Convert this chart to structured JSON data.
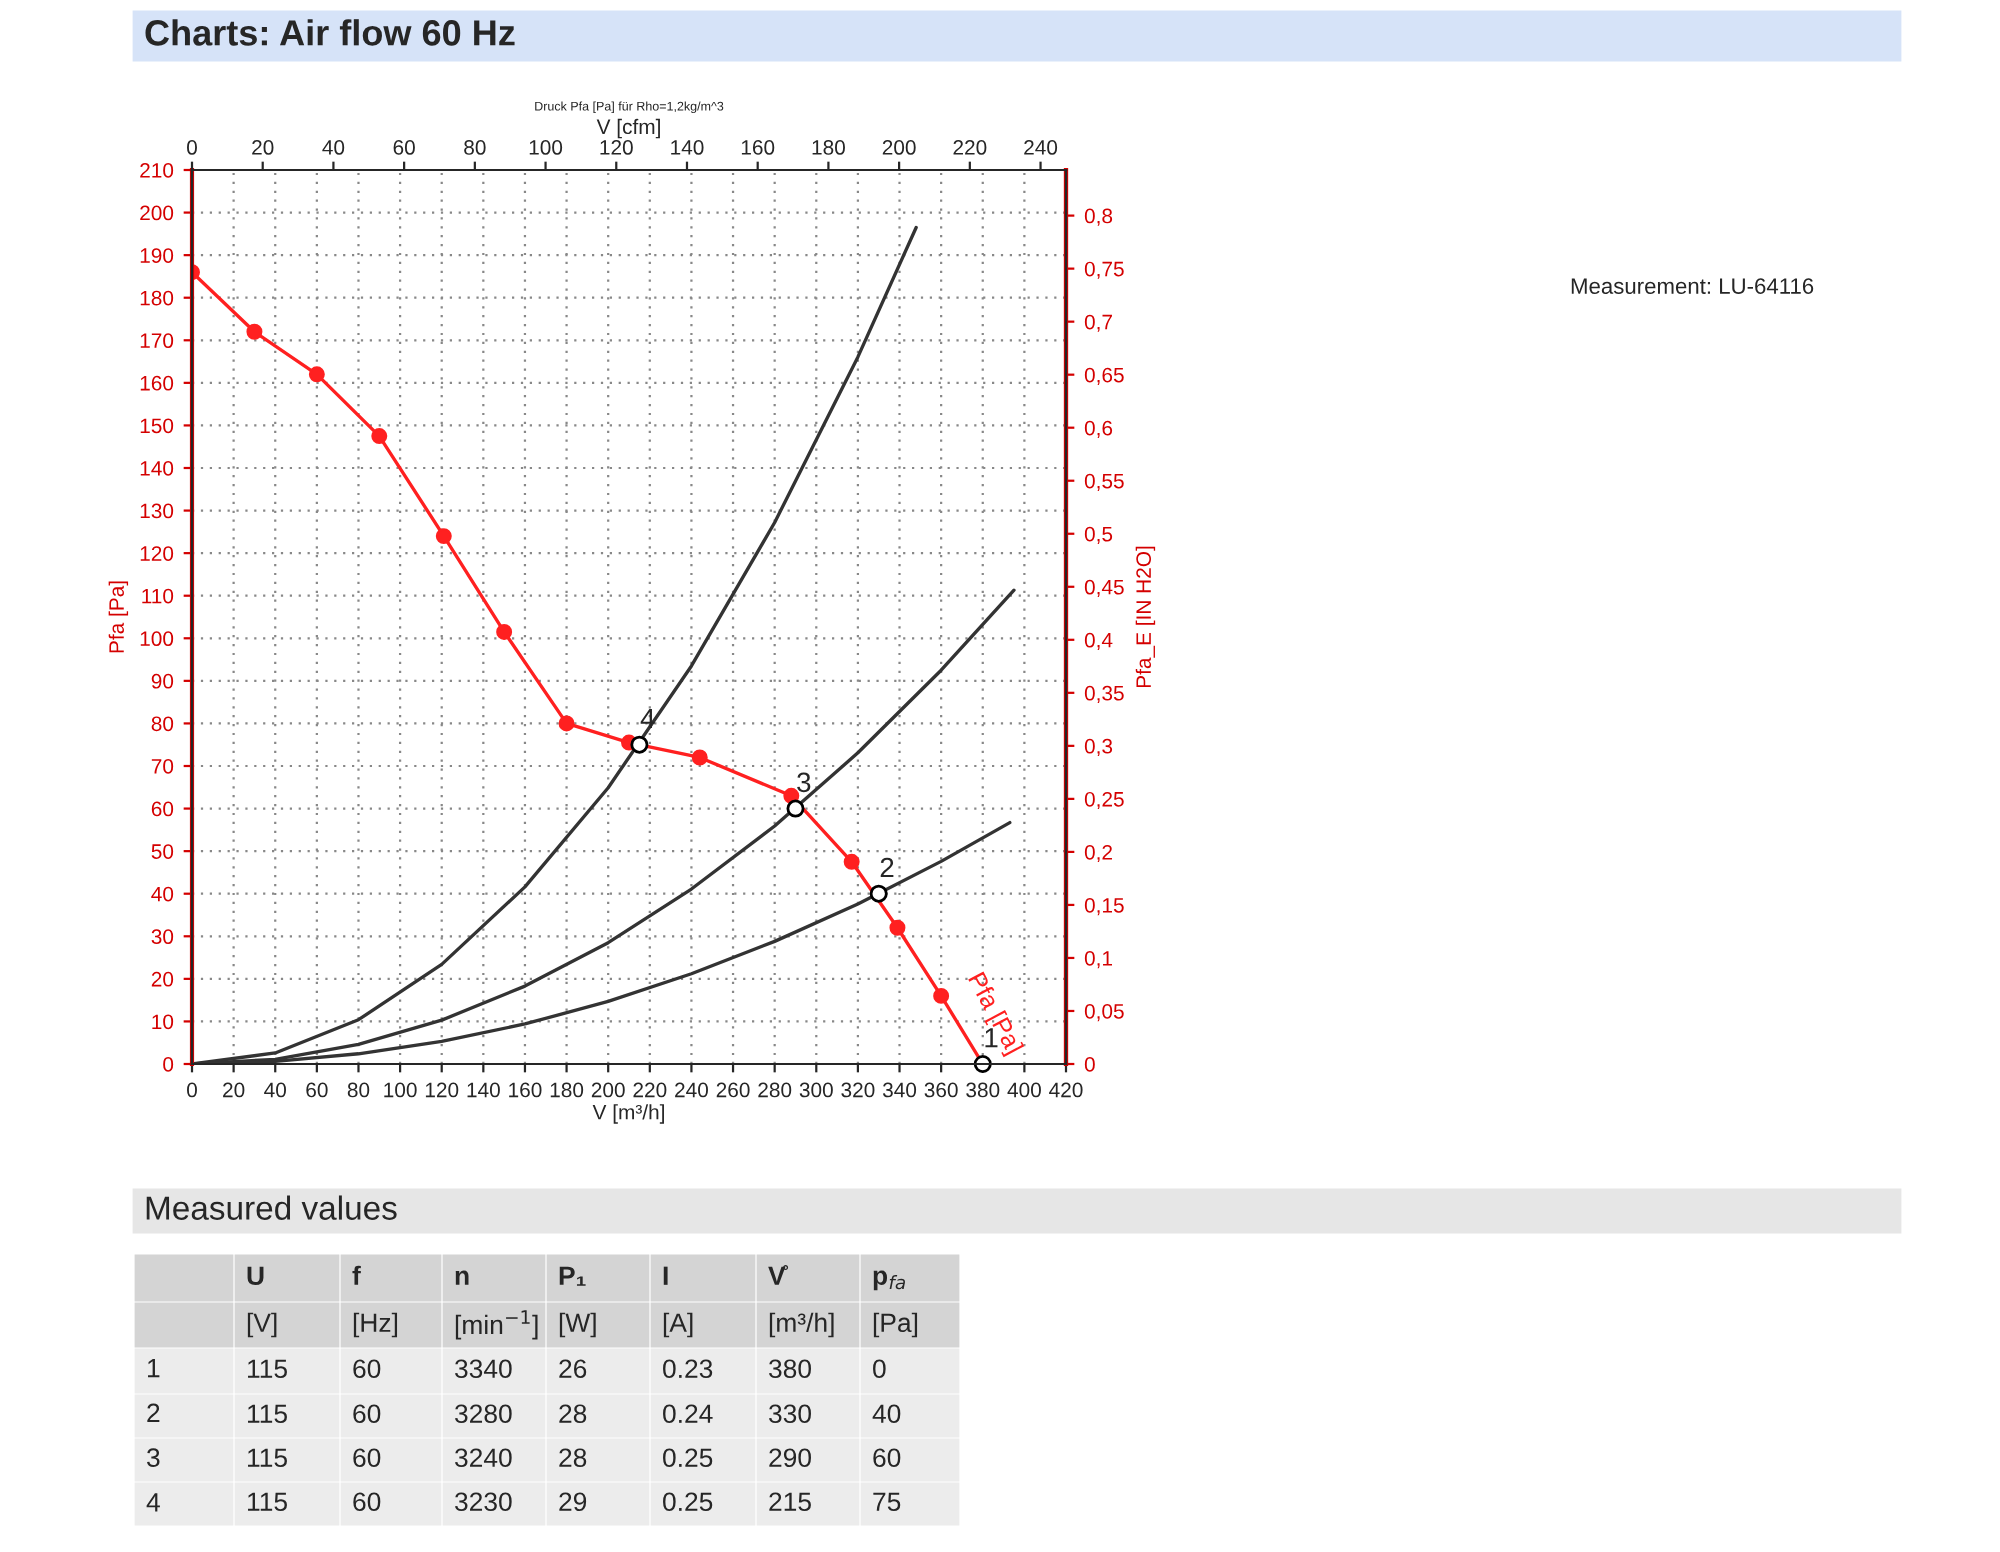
{
  "chart_data": [
    {
      "type": "line",
      "title": "Charts: Air flow 60 Hz",
      "subtitle": "Druck Pfa [Pa] für Rho=1,2kg/m^3",
      "xlabel": "V [m³/h]",
      "ylabel": "Pfa [Pa]",
      "y2label": "Pfa_E [IN H2O]",
      "x2label": "V [cfm]",
      "annotations": [
        "Measurement: LU-64116",
        {
          "text": "1",
          "x": 380,
          "y": 0
        },
        {
          "text": "2",
          "x": 330,
          "y": 40
        },
        {
          "text": "3",
          "x": 290,
          "y": 60
        },
        {
          "text": "4",
          "x": 215,
          "y": 75
        }
      ],
      "xlim": [
        0,
        420
      ],
      "xticks": [
        0,
        20,
        40,
        60,
        80,
        100,
        120,
        140,
        160,
        180,
        200,
        220,
        240,
        260,
        280,
        300,
        320,
        340,
        360,
        380,
        400,
        420
      ],
      "ylim": [
        0,
        210
      ],
      "yticks": [
        0,
        10,
        20,
        30,
        40,
        50,
        60,
        70,
        80,
        90,
        100,
        110,
        120,
        130,
        140,
        150,
        160,
        170,
        180,
        190,
        200,
        210
      ],
      "y2lim": [
        0,
        0.843
      ],
      "y2ticks": [
        0,
        {
          "value": 0.05,
          "label": "0,05"
        },
        {
          "value": 0.1,
          "label": "0,1"
        },
        {
          "value": 0.15,
          "label": "0,15"
        },
        {
          "value": 0.2,
          "label": "0,2"
        },
        {
          "value": 0.25,
          "label": "0,25"
        },
        {
          "value": 0.3,
          "label": "0,3"
        },
        {
          "value": 0.35,
          "label": "0,35"
        },
        {
          "value": 0.4,
          "label": "0,4"
        },
        {
          "value": 0.45,
          "label": "0,45"
        },
        {
          "value": 0.5,
          "label": "0,5"
        },
        {
          "value": 0.55,
          "label": "0,55"
        },
        {
          "value": 0.6,
          "label": "0,6"
        },
        {
          "value": 0.65,
          "label": "0,65"
        },
        {
          "value": 0.7,
          "label": "0,7"
        },
        {
          "value": 0.75,
          "label": "0,75"
        },
        {
          "value": 0.8,
          "label": "0,8"
        }
      ],
      "x2lim": [
        0,
        247.2
      ],
      "x2ticks": [
        0,
        20,
        40,
        60,
        80,
        100,
        120,
        140,
        160,
        180,
        200,
        220,
        240
      ],
      "grid": true,
      "series": [
        {
          "name": "Pfa [Pa]",
          "color": "#ff2020",
          "marker": "circle",
          "x": [
            0,
            30,
            60,
            90,
            121,
            150,
            180,
            210,
            244,
            288,
            317,
            339,
            360,
            380
          ],
          "values": [
            186,
            172,
            162,
            147.5,
            124,
            101.5,
            80,
            75.5,
            72,
            63,
            47.5,
            32,
            16,
            0
          ]
        },
        {
          "color": "#333333",
          "x": [
            0,
            40,
            80,
            120,
            160,
            200,
            240,
            280,
            320,
            348
          ],
          "values": [
            0,
            2.6,
            10.4,
            23.4,
            41.6,
            64.9,
            93.5,
            127.2,
            166.1,
            196.5
          ]
        },
        {
          "color": "#333333",
          "x": [
            0,
            40,
            80,
            120,
            160,
            200,
            240,
            280,
            320,
            360,
            395
          ],
          "values": [
            0,
            1.1,
            4.6,
            10.3,
            18.3,
            28.5,
            41.1,
            55.9,
            73.1,
            92.5,
            111.3
          ]
        },
        {
          "color": "#333333",
          "x": [
            0,
            40,
            80,
            120,
            160,
            200,
            240,
            280,
            320,
            360,
            393
          ],
          "values": [
            0,
            0.6,
            2.4,
            5.3,
            9.4,
            14.7,
            21.2,
            28.8,
            37.6,
            47.6,
            56.7
          ]
        },
        {
          "type": "scatter",
          "color": "#000000",
          "marker": "circle",
          "x": [
            380,
            330,
            290,
            215
          ],
          "values": [
            0,
            40,
            60,
            75
          ]
        }
      ]
    },
    {
      "type": "other",
      "title": "Measured values",
      "annotations": [
        "U",
        "f",
        "n",
        "P₁",
        "I",
        "V̊",
        "p$_{fa}$",
        "[V]",
        "[Hz]",
        "[min$^{−1}$]",
        "[W]",
        "[A]",
        "[m³/h]",
        "[Pa]",
        "1",
        "115",
        "60",
        "3340",
        "26",
        "0.23",
        "380",
        "0",
        "2",
        "115",
        "60",
        "3280",
        "28",
        "0.24",
        "330",
        "40",
        "3",
        "115",
        "60",
        "3240",
        "28",
        "0.25",
        "290",
        "60",
        "4",
        "115",
        "60",
        "3230",
        "29",
        "0.25",
        "215",
        "75"
      ]
    }
  ]
}
